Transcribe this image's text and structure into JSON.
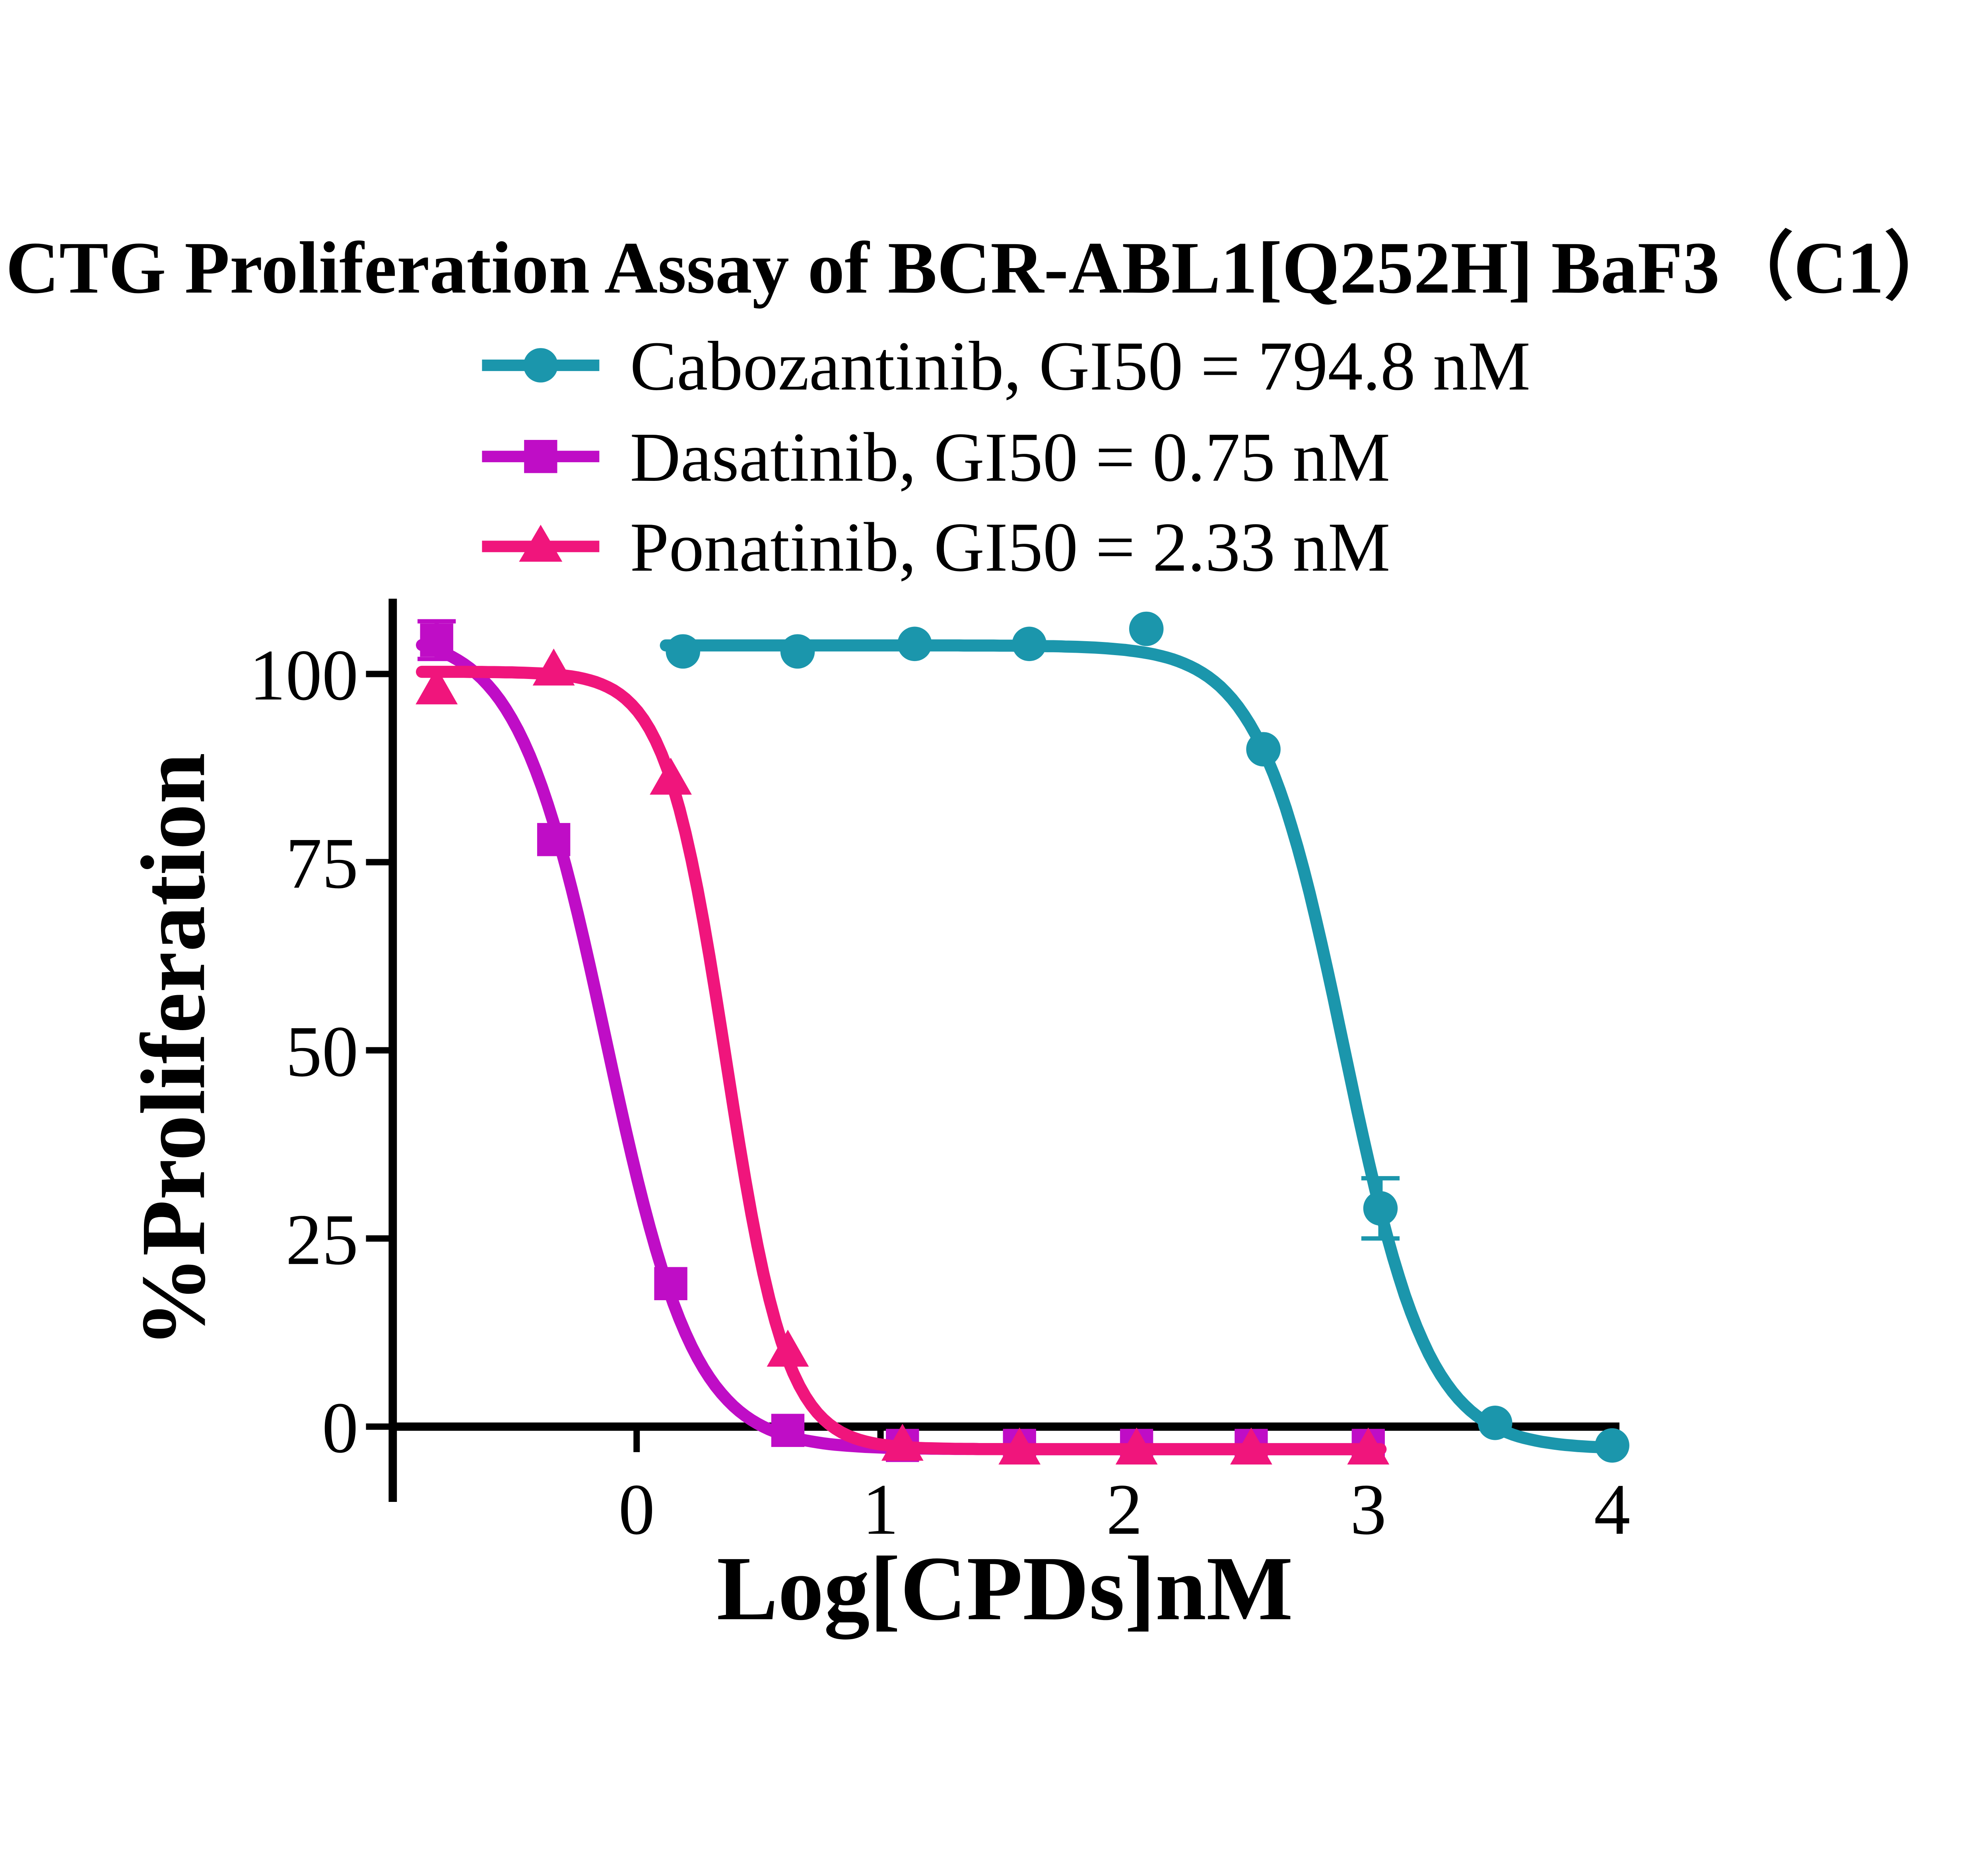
{
  "chart_data": {
    "type": "line",
    "title": "CTG Proliferation Assay of BCR-ABL1[Q252H] BaF3（C1）",
    "xlabel": "Log[CPDs]nM",
    "ylabel": "%Proliferation",
    "xlim": [
      -1.0,
      4.03
    ],
    "ylim": [
      -10,
      110
    ],
    "x_ticks": [
      0,
      1,
      2,
      3,
      4
    ],
    "y_ticks": [
      0,
      25,
      50,
      75,
      100
    ],
    "grid": false,
    "legend_position": "top-center",
    "axis_color": "#000000",
    "background_color": "#ffffff",
    "series": [
      {
        "name": "Dasatinib",
        "label": "Dasatinib, GI50 = 0.75 nM",
        "gi50_nM": 0.75,
        "color": "#BF0DC6",
        "marker": "square",
        "x": [
          -0.82,
          -0.34,
          0.14,
          0.62,
          1.09,
          1.57,
          2.05,
          2.52,
          3.0
        ],
        "y": [
          104.5,
          78,
          19,
          -0.5,
          -2.5,
          -2.5,
          -2.5,
          -2.5,
          -2.5
        ],
        "yerr": [
          2.5,
          0,
          0,
          0,
          0,
          0,
          0,
          0,
          0
        ],
        "fit": {
          "top": 105.5,
          "bottom": -3,
          "logIC50": -0.125,
          "hill": 2.4,
          "draw_from": -0.88,
          "draw_to": 3.05
        }
      },
      {
        "name": "Ponatinib",
        "label": "Ponatinib, GI50 = 2.33 nM",
        "gi50_nM": 2.33,
        "color": "#F0157C",
        "marker": "triangle",
        "x": [
          -0.82,
          -0.34,
          0.14,
          0.62,
          1.09,
          1.57,
          2.05,
          2.52,
          3.0
        ],
        "y": [
          98,
          100.5,
          86,
          10,
          -2.5,
          -3,
          -3,
          -3,
          -3
        ],
        "yerr": [
          0,
          0,
          0,
          0,
          0,
          0,
          0,
          0,
          0
        ],
        "fit": {
          "top": 100.3,
          "bottom": -3,
          "logIC50": 0.367,
          "hill": 3.5,
          "draw_from": -0.88,
          "draw_to": 3.05
        }
      },
      {
        "name": "Cabozantinib",
        "label": "Cabozantinib, GI50 = 794.8 nM",
        "gi50_nM": 794.8,
        "color": "#1B96AC",
        "marker": "circle",
        "x": [
          0.19,
          0.66,
          1.14,
          1.61,
          2.09,
          2.57,
          3.05,
          3.52,
          4.0
        ],
        "y": [
          103,
          103,
          104,
          104,
          106,
          90,
          29,
          0.5,
          -2.5
        ],
        "yerr": [
          0,
          0,
          0,
          0,
          0,
          0,
          4,
          0,
          0
        ],
        "fit": {
          "top": 103.8,
          "bottom": -3,
          "logIC50": 2.9,
          "hill": 2.5,
          "draw_from": 0.12,
          "draw_to": 4.03
        }
      }
    ],
    "legend_order": [
      "Cabozantinib",
      "Dasatinib",
      "Ponatinib"
    ]
  }
}
